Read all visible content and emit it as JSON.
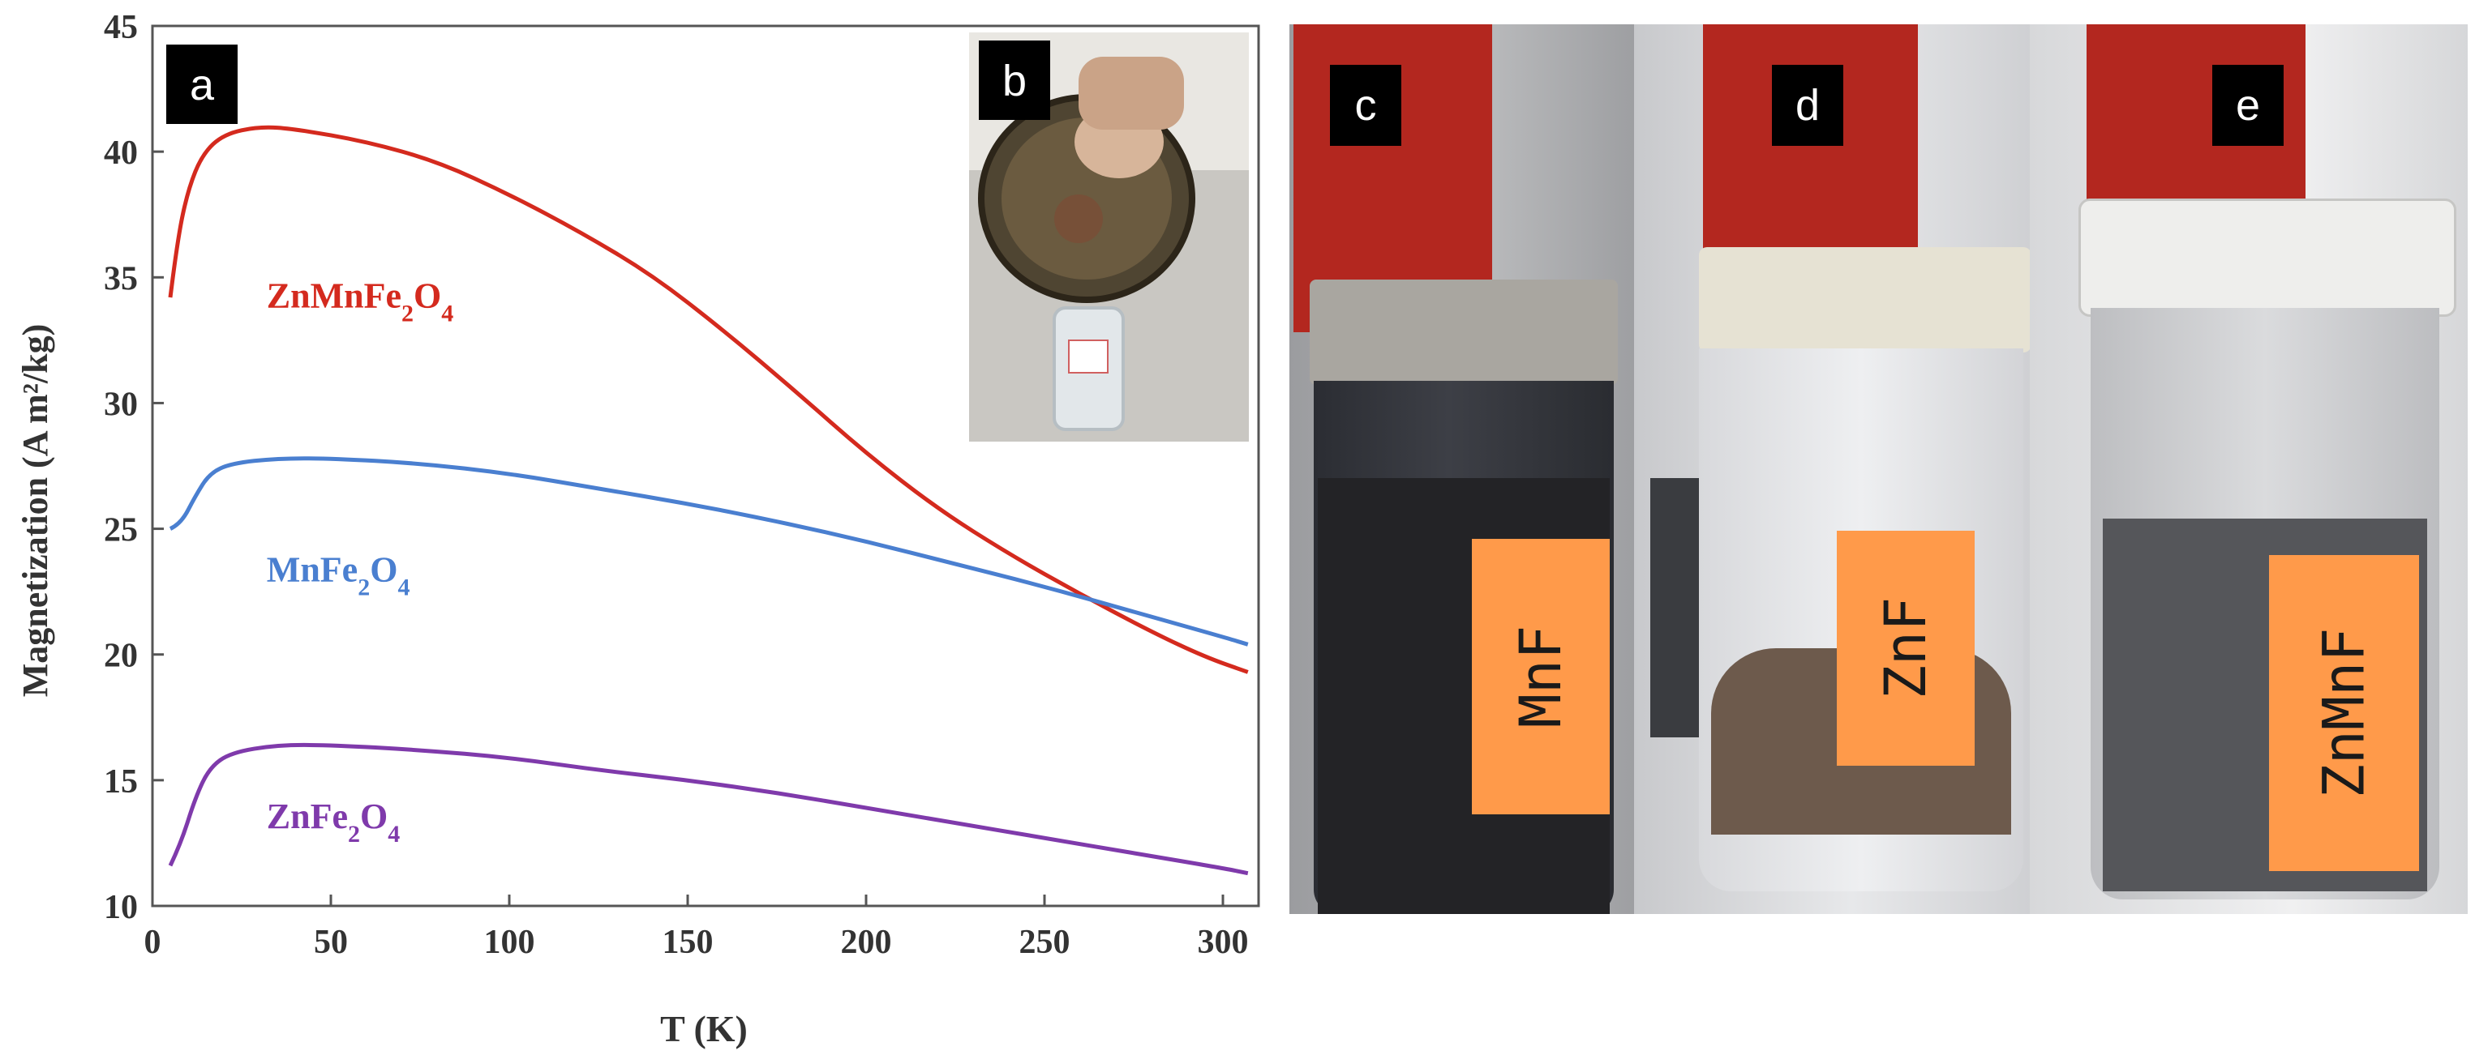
{
  "chart_data": {
    "type": "line",
    "title": "",
    "xlabel": "T (K)",
    "ylabel": "Magnetization  (A m²/kg)",
    "xlim": [
      0,
      310
    ],
    "ylim": [
      10,
      45
    ],
    "xticks": [
      0,
      50,
      100,
      150,
      200,
      250,
      300
    ],
    "yticks": [
      10,
      15,
      20,
      25,
      30,
      35,
      40,
      45
    ],
    "grid": false,
    "series": [
      {
        "name": "ZnMnFe2O4",
        "label_parts": [
          "ZnMnFe",
          "2",
          "O",
          "4"
        ],
        "color": "#d42a1e",
        "points": [
          [
            5,
            34.2
          ],
          [
            7,
            36.5
          ],
          [
            10,
            38.5
          ],
          [
            14,
            39.9
          ],
          [
            20,
            40.7
          ],
          [
            30,
            41.0
          ],
          [
            40,
            40.9
          ],
          [
            60,
            40.4
          ],
          [
            80,
            39.6
          ],
          [
            100,
            38.3
          ],
          [
            120,
            36.8
          ],
          [
            140,
            35.1
          ],
          [
            160,
            32.9
          ],
          [
            180,
            30.5
          ],
          [
            200,
            28.0
          ],
          [
            220,
            25.8
          ],
          [
            240,
            24.0
          ],
          [
            260,
            22.4
          ],
          [
            280,
            20.9
          ],
          [
            295,
            19.9
          ],
          [
            307,
            19.3
          ]
        ]
      },
      {
        "name": "MnFe2O4",
        "label_parts": [
          "MnFe",
          "2",
          "O",
          "4"
        ],
        "color": "#4a7fd0",
        "points": [
          [
            5,
            25.0
          ],
          [
            8,
            25.2
          ],
          [
            12,
            26.3
          ],
          [
            16,
            27.2
          ],
          [
            22,
            27.6
          ],
          [
            35,
            27.8
          ],
          [
            50,
            27.8
          ],
          [
            75,
            27.6
          ],
          [
            100,
            27.2
          ],
          [
            125,
            26.6
          ],
          [
            150,
            26.0
          ],
          [
            175,
            25.3
          ],
          [
            200,
            24.5
          ],
          [
            225,
            23.6
          ],
          [
            250,
            22.7
          ],
          [
            275,
            21.7
          ],
          [
            300,
            20.7
          ],
          [
            307,
            20.4
          ]
        ]
      },
      {
        "name": "ZnFe2O4",
        "label_parts": [
          "ZnFe",
          "2",
          "O",
          "4"
        ],
        "color": "#7f3aab",
        "points": [
          [
            5,
            11.6
          ],
          [
            8,
            12.5
          ],
          [
            12,
            14.3
          ],
          [
            16,
            15.5
          ],
          [
            22,
            16.1
          ],
          [
            35,
            16.4
          ],
          [
            50,
            16.4
          ],
          [
            75,
            16.2
          ],
          [
            100,
            15.9
          ],
          [
            125,
            15.4
          ],
          [
            150,
            15.0
          ],
          [
            175,
            14.5
          ],
          [
            200,
            13.9
          ],
          [
            225,
            13.3
          ],
          [
            250,
            12.7
          ],
          [
            275,
            12.1
          ],
          [
            300,
            11.5
          ],
          [
            307,
            11.3
          ]
        ]
      }
    ]
  },
  "panels": {
    "a": "a",
    "b": "b",
    "c": "c",
    "d": "d",
    "e": "e"
  },
  "stickers": {
    "c": "MnF",
    "d": "ZnF",
    "e": "ZnMnF"
  },
  "colors": {
    "magnet_red": "#b3271f",
    "sticker_orange": "#ff9a4a",
    "background": "#ffffff"
  }
}
